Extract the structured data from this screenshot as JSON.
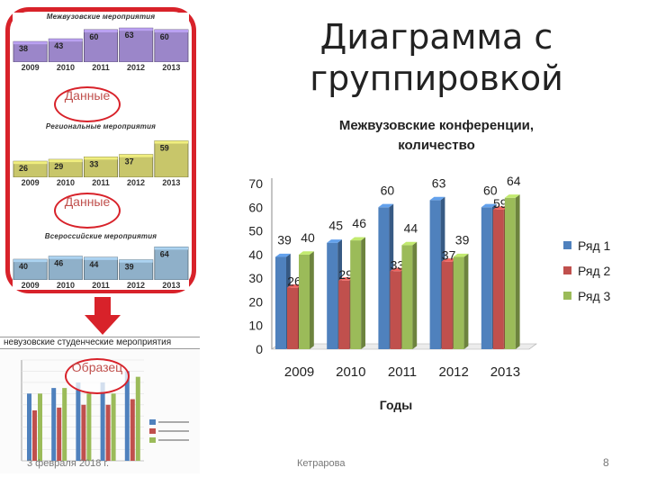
{
  "slide": {
    "title": "Диаграмма с группировкой",
    "footer_date": "3 февраля 2018 г.",
    "footer_author": "Кетрарова",
    "page_number": "8"
  },
  "callouts": {
    "data1": "Данные",
    "data2": "Данные",
    "image": "Образец"
  },
  "mini_charts": [
    {
      "title": "Межвузовские мероприятия",
      "years": [
        "2009",
        "2010",
        "2011",
        "2012",
        "2013"
      ],
      "values": [
        38,
        43,
        60,
        63,
        60
      ],
      "color": "#9b86c9"
    },
    {
      "title": "Региональные мероприятия",
      "years": [
        "2009",
        "2010",
        "2011",
        "2012",
        "2013"
      ],
      "values": [
        26,
        29,
        33,
        37,
        59
      ],
      "color": "#c8c66a"
    },
    {
      "title": "Всероссийские мероприятия",
      "years": [
        "2009",
        "2010",
        "2011",
        "2012",
        "2013"
      ],
      "values": [
        40,
        46,
        44,
        39,
        64
      ],
      "color": "#8fb0c9"
    }
  ],
  "small_chart": {
    "title": "невузовские студенческие мероприятия",
    "categories": [
      "",
      "",
      "",
      "",
      ""
    ],
    "series": [
      {
        "values": [
          12,
          13,
          14,
          14,
          16
        ],
        "color": "#4f81bd"
      },
      {
        "values": [
          9,
          9.5,
          10,
          10,
          11
        ],
        "color": "#c0504d"
      },
      {
        "values": [
          12,
          13,
          12,
          12,
          15
        ],
        "color": "#9bbb59"
      }
    ],
    "ylim": [
      0,
      18
    ]
  },
  "chart_data": {
    "type": "bar",
    "title": "Межвузовские конференции, количество",
    "xlabel": "Годы",
    "ylabel": "",
    "categories": [
      "2009",
      "2010",
      "2011",
      "2012",
      "2013"
    ],
    "series": [
      {
        "name": "Ряд 1",
        "values": [
          39,
          45,
          60,
          63,
          60
        ],
        "color": "#4f81bd"
      },
      {
        "name": "Ряд 2",
        "values": [
          26,
          29,
          33,
          37,
          59
        ],
        "color": "#c0504d"
      },
      {
        "name": "Ряд 3",
        "values": [
          40,
          46,
          44,
          39,
          64
        ],
        "color": "#9bbb59"
      }
    ],
    "ylim": [
      0,
      70
    ],
    "yticks": [
      "0",
      "10",
      "20",
      "30",
      "40",
      "50",
      "60",
      "70"
    ],
    "grid": false,
    "legend": "right"
  }
}
